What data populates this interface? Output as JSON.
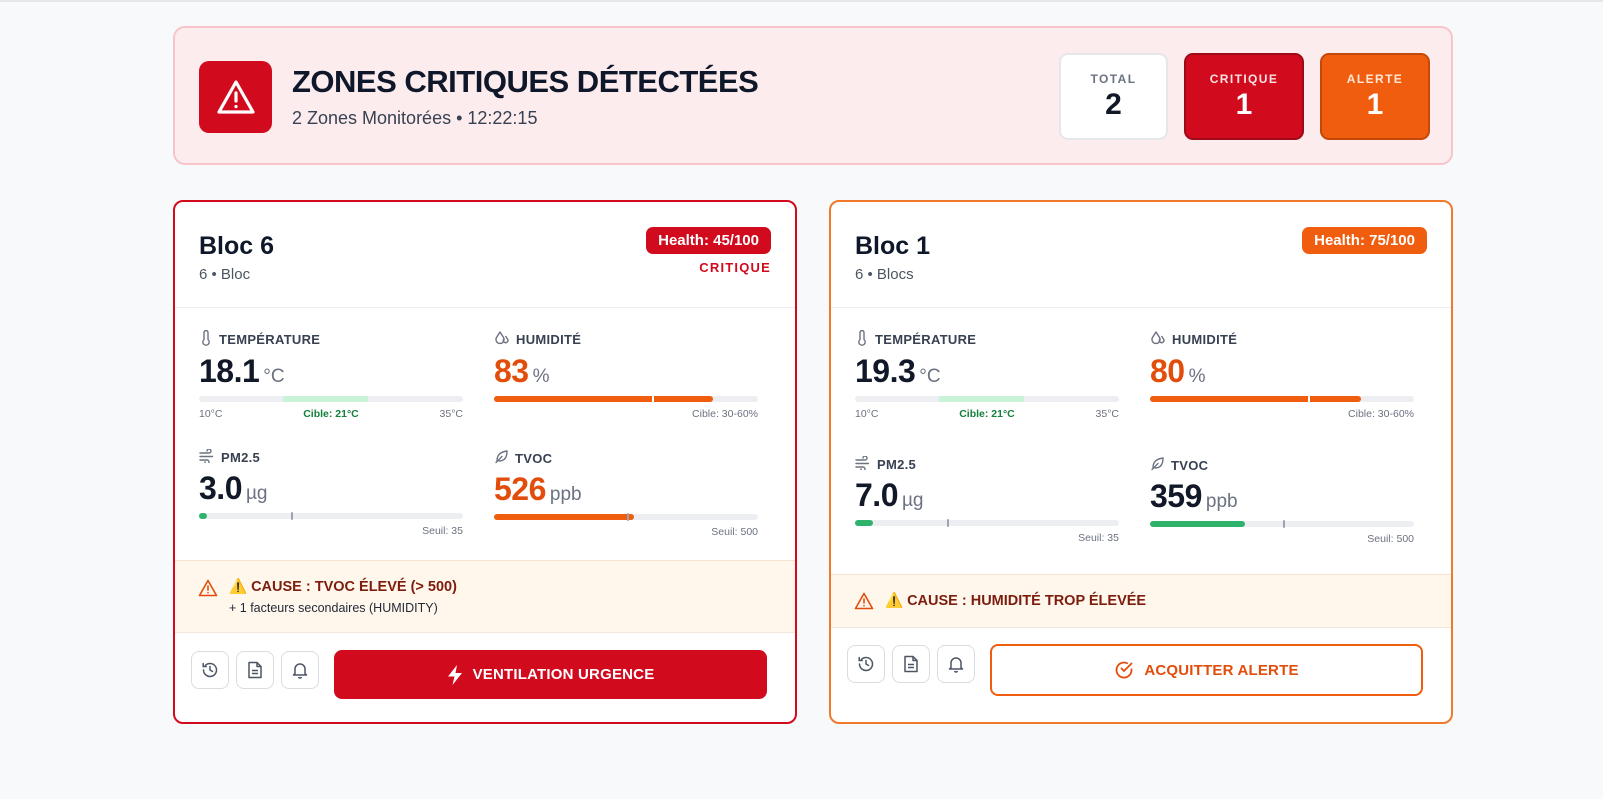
{
  "banner": {
    "title": "ZONES CRITIQUES DÉTECTÉES",
    "subtitle": "2 Zones Monitorées • 12:22:15",
    "icon": "warning-triangle-icon",
    "stats": {
      "total_label": "TOTAL",
      "total_value": "2",
      "critical_label": "CRITIQUE",
      "critical_value": "1",
      "alert_label": "ALERTE",
      "alert_value": "1"
    }
  },
  "colors": {
    "critical": "#d10a1e",
    "alert": "#f05d0e",
    "ok": "#2fb26b",
    "target_band": "#c8f3d6"
  },
  "zones": [
    {
      "name": "Bloc 6",
      "subtitle": "6 • Bloc",
      "health": "Health: 45/100",
      "health_score": 45,
      "status": "CRITIQUE",
      "temperature": {
        "label": "TEMPÉRATURE",
        "value": "18.1",
        "unit": "°C",
        "min": "10°C",
        "target": "Cible: 21°C",
        "max": "35°C"
      },
      "humidity": {
        "label": "HUMIDITÉ",
        "value": "83",
        "unit": "%",
        "range": "Cible: 30-60%"
      },
      "pm25": {
        "label": "PM2.5",
        "value": "3.0",
        "unit": "µg",
        "threshold": "Seuil: 35"
      },
      "tvoc": {
        "label": "TVOC",
        "value": "526",
        "unit": "ppb",
        "threshold": "Seuil: 500"
      },
      "cause": {
        "title": "⚠️ CAUSE : TVOC ÉLEVÉ (> 500)",
        "secondary": "+ 1 facteurs secondaires (HUMIDITY)"
      },
      "action_label": "VENTILATION URGENCE",
      "action_icon": "lightning-icon"
    },
    {
      "name": "Bloc 1",
      "subtitle": "6 • Blocs",
      "health": "Health: 75/100",
      "health_score": 75,
      "status": "",
      "temperature": {
        "label": "TEMPÉRATURE",
        "value": "19.3",
        "unit": "°C",
        "min": "10°C",
        "target": "Cible: 21°C",
        "max": "35°C"
      },
      "humidity": {
        "label": "HUMIDITÉ",
        "value": "80",
        "unit": "%",
        "range": "Cible: 30-60%"
      },
      "pm25": {
        "label": "PM2.5",
        "value": "7.0",
        "unit": "µg",
        "threshold": "Seuil: 35"
      },
      "tvoc": {
        "label": "TVOC",
        "value": "359",
        "unit": "ppb",
        "threshold": "Seuil: 500"
      },
      "cause": {
        "title": "⚠️ CAUSE : HUMIDITÉ TROP ÉLEVÉE",
        "secondary": ""
      },
      "action_label": "ACQUITTER ALERTE",
      "action_icon": "check-circle-icon"
    }
  ],
  "toolbar_icons": [
    "history-icon",
    "report-icon",
    "bell-icon"
  ]
}
